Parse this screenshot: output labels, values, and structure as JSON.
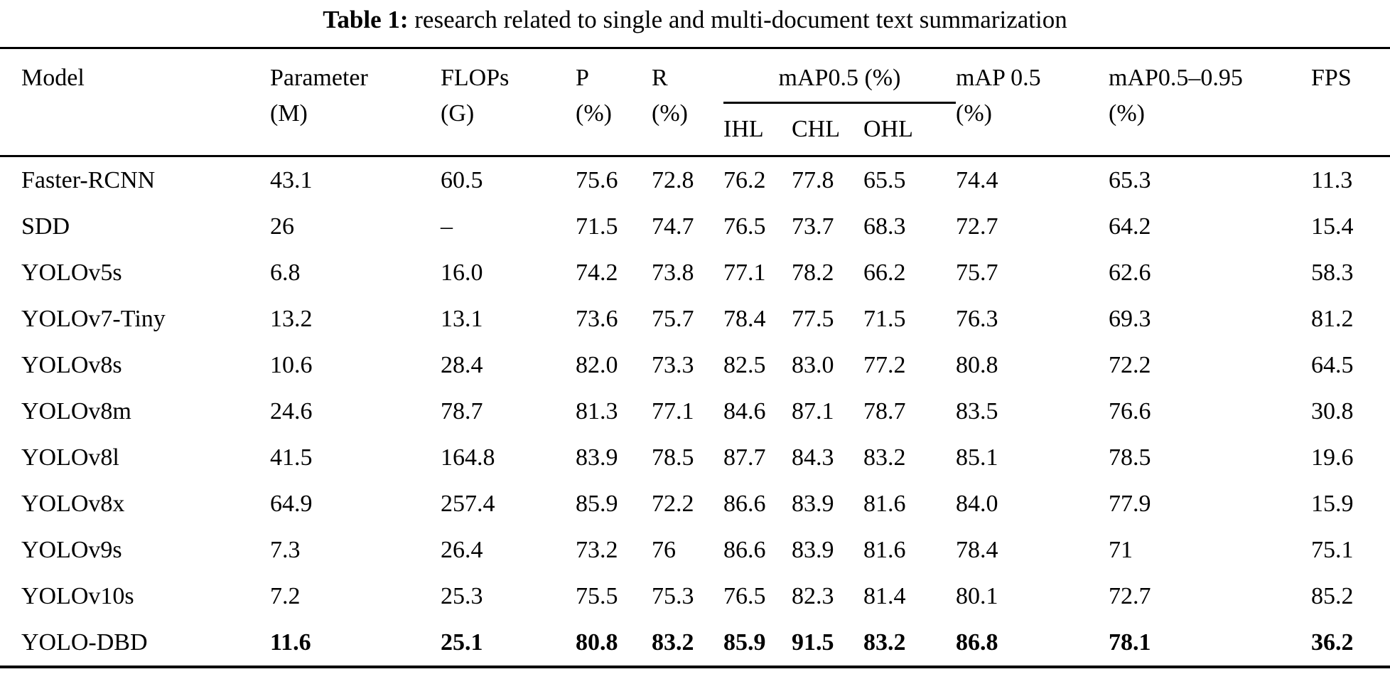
{
  "colors": {
    "text": "#000000",
    "background": "#ffffff",
    "rule": "#000000"
  },
  "caption": {
    "label": "Table 1:",
    "text": "research related to single and multi-document text summarization"
  },
  "table": {
    "headers": {
      "model": "Model",
      "parameter_line1": "Parameter",
      "parameter_line2": "(M)",
      "flops_line1": "FLOPs",
      "flops_line2": "(G)",
      "p_line1": "P",
      "p_line2": "(%)",
      "r_line1": "R",
      "r_line2": "(%)",
      "map05_group": "mAP0.5 (%)",
      "sub_ihl": "IHL",
      "sub_chl": "CHL",
      "sub_ohl": "OHL",
      "map05_line1": "mAP 0.5",
      "map05_line2": "(%)",
      "map0595_line1": "mAP0.5–0.95",
      "map0595_line2": "(%)",
      "fps": "FPS"
    },
    "column_keys": [
      "model",
      "parameter",
      "flops",
      "p",
      "r",
      "ihl",
      "chl",
      "ohl",
      "map05",
      "map0595",
      "fps"
    ],
    "rows": [
      {
        "model": "Faster-RCNN",
        "parameter": "43.1",
        "flops": "60.5",
        "p": "75.6",
        "r": "72.8",
        "ihl": "76.2",
        "chl": "77.8",
        "ohl": "65.5",
        "map05": "74.4",
        "map0595": "65.3",
        "fps": "11.3",
        "bold": false
      },
      {
        "model": "SDD",
        "parameter": "26",
        "flops": "–",
        "p": "71.5",
        "r": "74.7",
        "ihl": "76.5",
        "chl": "73.7",
        "ohl": "68.3",
        "map05": "72.7",
        "map0595": "64.2",
        "fps": "15.4",
        "bold": false
      },
      {
        "model": "YOLOv5s",
        "parameter": "6.8",
        "flops": "16.0",
        "p": "74.2",
        "r": "73.8",
        "ihl": "77.1",
        "chl": "78.2",
        "ohl": "66.2",
        "map05": "75.7",
        "map0595": "62.6",
        "fps": "58.3",
        "bold": false
      },
      {
        "model": "YOLOv7-Tiny",
        "parameter": "13.2",
        "flops": "13.1",
        "p": "73.6",
        "r": "75.7",
        "ihl": "78.4",
        "chl": "77.5",
        "ohl": "71.5",
        "map05": "76.3",
        "map0595": "69.3",
        "fps": "81.2",
        "bold": false
      },
      {
        "model": "YOLOv8s",
        "parameter": "10.6",
        "flops": "28.4",
        "p": "82.0",
        "r": "73.3",
        "ihl": "82.5",
        "chl": "83.0",
        "ohl": "77.2",
        "map05": "80.8",
        "map0595": "72.2",
        "fps": "64.5",
        "bold": false
      },
      {
        "model": "YOLOv8m",
        "parameter": "24.6",
        "flops": "78.7",
        "p": "81.3",
        "r": "77.1",
        "ihl": "84.6",
        "chl": "87.1",
        "ohl": "78.7",
        "map05": "83.5",
        "map0595": "76.6",
        "fps": "30.8",
        "bold": false
      },
      {
        "model": "YOLOv8l",
        "parameter": "41.5",
        "flops": "164.8",
        "p": "83.9",
        "r": "78.5",
        "ihl": "87.7",
        "chl": "84.3",
        "ohl": "83.2",
        "map05": "85.1",
        "map0595": "78.5",
        "fps": "19.6",
        "bold": false
      },
      {
        "model": "YOLOv8x",
        "parameter": "64.9",
        "flops": "257.4",
        "p": "85.9",
        "r": "72.2",
        "ihl": "86.6",
        "chl": "83.9",
        "ohl": "81.6",
        "map05": "84.0",
        "map0595": "77.9",
        "fps": "15.9",
        "bold": false
      },
      {
        "model": "YOLOv9s",
        "parameter": "7.3",
        "flops": "26.4",
        "p": "73.2",
        "r": "76",
        "ihl": "86.6",
        "chl": "83.9",
        "ohl": "81.6",
        "map05": "78.4",
        "map0595": "71",
        "fps": "75.1",
        "bold": false
      },
      {
        "model": "YOLOv10s",
        "parameter": "7.2",
        "flops": "25.3",
        "p": "75.5",
        "r": "75.3",
        "ihl": "76.5",
        "chl": "82.3",
        "ohl": "81.4",
        "map05": "80.1",
        "map0595": "72.7",
        "fps": "85.2",
        "bold": false
      },
      {
        "model": "YOLO-DBD",
        "parameter": "11.6",
        "flops": "25.1",
        "p": "80.8",
        "r": "83.2",
        "ihl": "85.9",
        "chl": "91.5",
        "ohl": "83.2",
        "map05": "86.8",
        "map0595": "78.1",
        "fps": "36.2",
        "bold": true
      }
    ]
  }
}
